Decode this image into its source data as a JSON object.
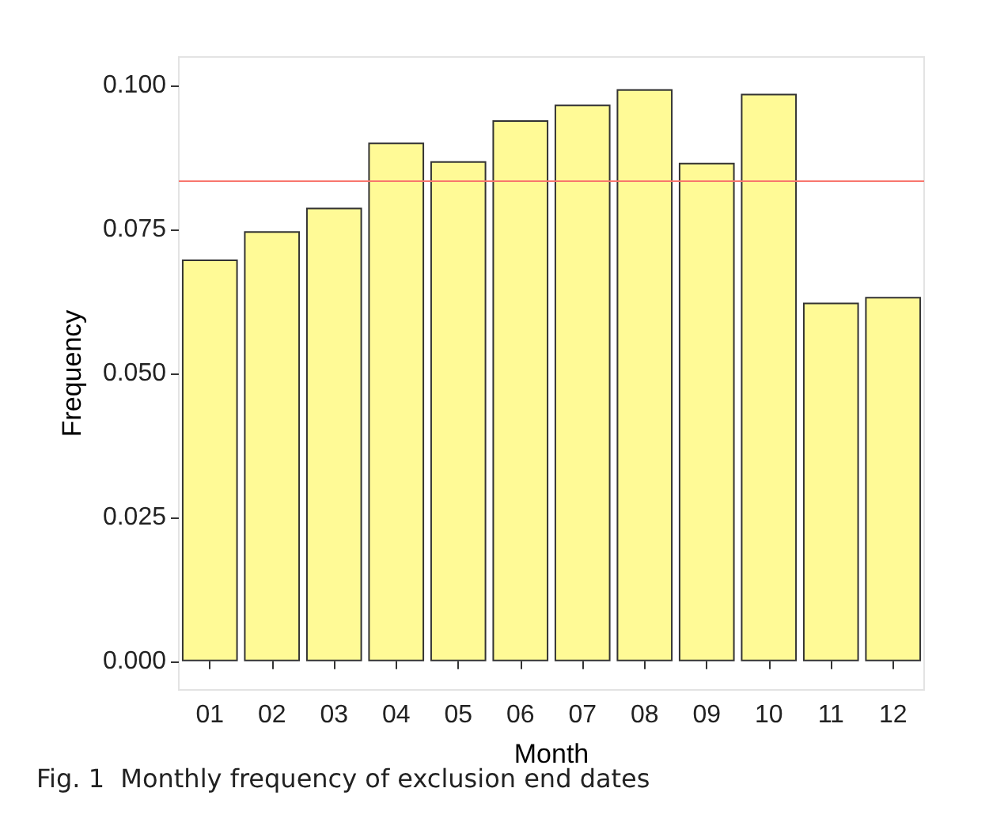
{
  "chart_data": {
    "type": "bar",
    "xlabel": "Month",
    "ylabel": "Frequency",
    "categories": [
      "01",
      "02",
      "03",
      "04",
      "05",
      "06",
      "07",
      "08",
      "09",
      "10",
      "11",
      "12"
    ],
    "values": [
      0.0698,
      0.0747,
      0.0788,
      0.0901,
      0.0869,
      0.094,
      0.0967,
      0.0994,
      0.0866,
      0.0986,
      0.0623,
      0.0633
    ],
    "color": "#fffa96",
    "ylim": [
      -0.005,
      0.105
    ],
    "yticks": [
      {
        "value": 0,
        "label": "0.000"
      },
      {
        "value": 0.025,
        "label": "0.025"
      },
      {
        "value": 0.05,
        "label": "0.050"
      },
      {
        "value": 0.075,
        "label": "0.075"
      },
      {
        "value": 0.1,
        "label": "0.100"
      }
    ],
    "ref_lines": [
      {
        "axis": "y",
        "value": 0.0834,
        "color": "#f8766d"
      }
    ],
    "grid": false,
    "annotations": [
      "Fig. 1  Monthly frequency of exclusion end dates"
    ]
  }
}
